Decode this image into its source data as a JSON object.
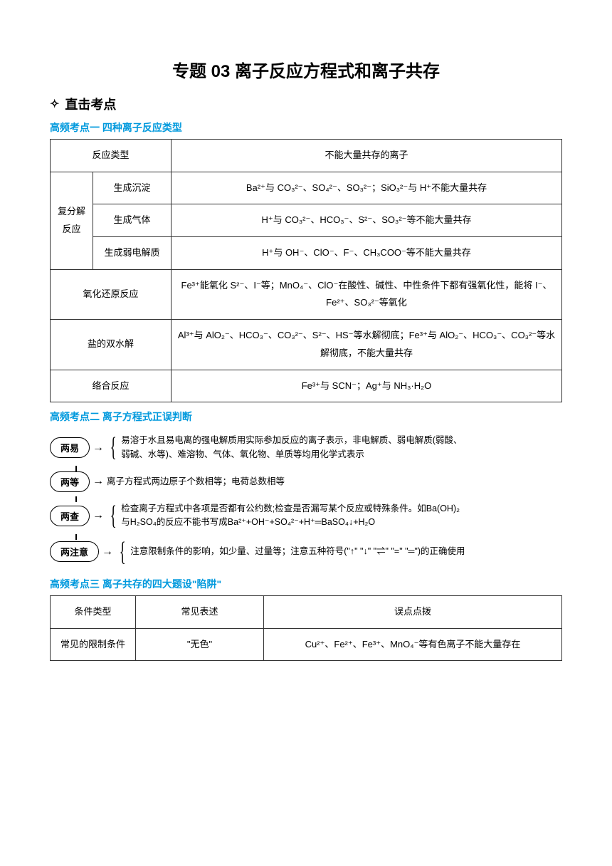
{
  "title": "专题 03   离子反应方程式和离子共存",
  "section_heading_icon": "✧",
  "section_heading": "直击考点",
  "sub1": "高频考点一    四种离子反应类型",
  "table1": {
    "header_left": "反应类型",
    "header_right": "不能大量共存的离子",
    "group_label": "复分解反应",
    "rows": [
      {
        "type": "生成沉淀",
        "desc": "Ba²⁺与 CO₃²⁻、SO₄²⁻、SO₃²⁻；SiO₃²⁻与 H⁺不能大量共存"
      },
      {
        "type": "生成气体",
        "desc": "H⁺与 CO₃²⁻、HCO₃⁻、S²⁻、SO₃²⁻等不能大量共存"
      },
      {
        "type": "生成弱电解质",
        "desc": "H⁺与 OH⁻、ClO⁻、F⁻、CH₃COO⁻等不能大量共存"
      }
    ],
    "redox_label": "氧化还原反应",
    "redox_desc": "Fe³⁺能氧化 S²⁻、I⁻等；MnO₄⁻、ClO⁻在酸性、碱性、中性条件下都有强氧化性，能将 I⁻、Fe²⁺、SO₃²⁻等氧化",
    "hydrolysis_label": "盐的双水解",
    "hydrolysis_desc": "Al³⁺与 AlO₂⁻、HCO₃⁻、CO₃²⁻、S²⁻、HS⁻等水解彻底；Fe³⁺与 AlO₂⁻、HCO₃⁻、CO₃²⁻等水解彻底，不能大量共存",
    "complex_label": "络合反应",
    "complex_desc": "Fe³⁺与 SCN⁻；Ag⁺与 NH₃·H₂O"
  },
  "sub2": "高频考点二   离子方程式正误判断",
  "flow": {
    "items": [
      {
        "label": "两易",
        "text": "易溶于水且易电离的强电解质用实际参加反应的离子表示，非电解质、弱电解质(弱酸、弱碱、水等)、难溶物、气体、氧化物、单质等均用化学式表示"
      },
      {
        "label": "两等",
        "text": "离子方程式两边原子个数相等；电荷总数相等"
      },
      {
        "label": "两查",
        "text": "检查离子方程式中各项是否都有公约数;检查是否漏写某个反应或特殊条件。如Ba(OH)₂与H₂SO₄的反应不能书写成Ba²⁺+OH⁻+SO₄²⁻+H⁺═BaSO₄↓+H₂O"
      },
      {
        "label": "两注意",
        "text": "注意限制条件的影响，如少量、过量等；注意五种符号(\"↑\"  \"↓\"  \"⇌\"  \"=\"  \"═\")的正确使用"
      }
    ]
  },
  "sub3": "高频考点三    离子共存的四大题设\"陷阱\"",
  "table3": {
    "headers": [
      "条件类型",
      "常见表述",
      "误点点拨"
    ],
    "row_label": "常见的限制条件",
    "row_expr": "\"无色\"",
    "row_tip": "Cu²⁺、Fe²⁺、Fe³⁺、MnO₄⁻等有色离子不能大量存在"
  }
}
